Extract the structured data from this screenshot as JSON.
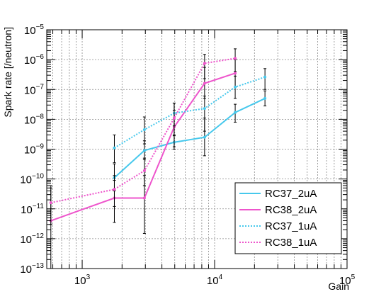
{
  "chart_data": {
    "type": "line",
    "xlabel": "Gain",
    "ylabel": "Spark rate [/neutron]",
    "xscale": "log",
    "yscale": "log",
    "xlim": [
      540,
      100000
    ],
    "ylim": [
      1e-13,
      1e-05
    ],
    "grid": true,
    "legend_position": "bottom-right",
    "x_ticks": [
      {
        "base": "10",
        "exp": "3",
        "value": 1000
      },
      {
        "base": "10",
        "exp": "4",
        "value": 10000
      },
      {
        "base": "10",
        "exp": "5",
        "value": 100000
      }
    ],
    "y_ticks": [
      {
        "base": "10",
        "exp": "−13",
        "value": 1e-13
      },
      {
        "base": "10",
        "exp": "−12",
        "value": 1e-12
      },
      {
        "base": "10",
        "exp": "−11",
        "value": 1e-11
      },
      {
        "base": "10",
        "exp": "−10",
        "value": 1e-10
      },
      {
        "base": "10",
        "exp": "−9",
        "value": 1e-09
      },
      {
        "base": "10",
        "exp": "−8",
        "value": 1e-08
      },
      {
        "base": "10",
        "exp": "−7",
        "value": 1e-07
      },
      {
        "base": "10",
        "exp": "−6",
        "value": 1e-06
      },
      {
        "base": "10",
        "exp": "−5",
        "value": 1e-05
      }
    ],
    "series": [
      {
        "name": "RC37_2uA",
        "color": "#46c8ec",
        "dash": "solid",
        "points": [
          {
            "x": 1750,
            "y": 1.1e-10,
            "lo": 4e-11,
            "hi": 3.2e-10
          },
          {
            "x": 2950,
            "y": 9e-10,
            "lo": 4.5e-10,
            "hi": 1.9e-09
          },
          {
            "x": 4950,
            "y": 1.7e-09,
            "lo": 1e-09,
            "hi": 2.8e-09
          },
          {
            "x": 8400,
            "y": 2.5e-09,
            "lo": 6e-10,
            "hi": 1.1e-08
          },
          {
            "x": 14300,
            "y": 1.7e-08,
            "lo": 8e-09,
            "hi": 3.2e-08
          },
          {
            "x": 24000,
            "y": 5e-08,
            "lo": 2.8e-08,
            "hi": 9e-08
          }
        ]
      },
      {
        "name": "RC38_2uA",
        "color": "#ee55cc",
        "dash": "solid",
        "points": [
          {
            "x": 580,
            "y": 4e-12,
            "lo": 1e-13,
            "hi": 6e-11
          },
          {
            "x": 1750,
            "y": 2.3e-11,
            "lo": 3.5e-12,
            "hi": 9e-11
          },
          {
            "x": 2950,
            "y": 2.3e-11,
            "lo": 1.5e-12,
            "hi": 1.3e-10
          },
          {
            "x": 4950,
            "y": 5.5e-09,
            "lo": 1.2e-09,
            "hi": 2e-08
          },
          {
            "x": 8400,
            "y": 1.6e-07,
            "lo": 5e-08,
            "hi": 5.5e-07
          },
          {
            "x": 14300,
            "y": 3.5e-07,
            "lo": 1.2e-07,
            "hi": 1e-06
          }
        ]
      },
      {
        "name": "RC37_1uA",
        "color": "#46c8ec",
        "dash": "dotted",
        "points": [
          {
            "x": 1750,
            "y": 1.1e-09,
            "lo": 3.5e-10,
            "hi": 3e-09
          },
          {
            "x": 2950,
            "y": 4.5e-09,
            "lo": 1.5e-09,
            "hi": 1.2e-08
          },
          {
            "x": 4950,
            "y": 1.6e-08,
            "lo": 6e-09,
            "hi": 3.5e-08
          },
          {
            "x": 8400,
            "y": 2.3e-08,
            "lo": 4e-09,
            "hi": 6e-08
          },
          {
            "x": 14300,
            "y": 1.2e-07,
            "lo": 5e-08,
            "hi": 2.8e-07
          },
          {
            "x": 24000,
            "y": 2.6e-07,
            "lo": 1e-07,
            "hi": 5e-07
          }
        ]
      },
      {
        "name": "RC38_1uA",
        "color": "#ee55cc",
        "dash": "dotted",
        "points": [
          {
            "x": 580,
            "y": 1.6e-11,
            "lo": 3e-12,
            "hi": 5e-11
          },
          {
            "x": 1750,
            "y": 4.5e-11,
            "lo": 1.2e-11,
            "hi": 1.3e-10
          },
          {
            "x": 2950,
            "y": 1.9e-10,
            "lo": 6e-11,
            "hi": 5e-10
          },
          {
            "x": 4950,
            "y": 1.1e-08,
            "lo": 3e-09,
            "hi": 3.5e-08
          },
          {
            "x": 8400,
            "y": 7.5e-07,
            "lo": 2.3e-07,
            "hi": 1.5e-06
          },
          {
            "x": 14300,
            "y": 1.1e-06,
            "lo": 4e-07,
            "hi": 2.3e-06
          }
        ]
      }
    ]
  }
}
